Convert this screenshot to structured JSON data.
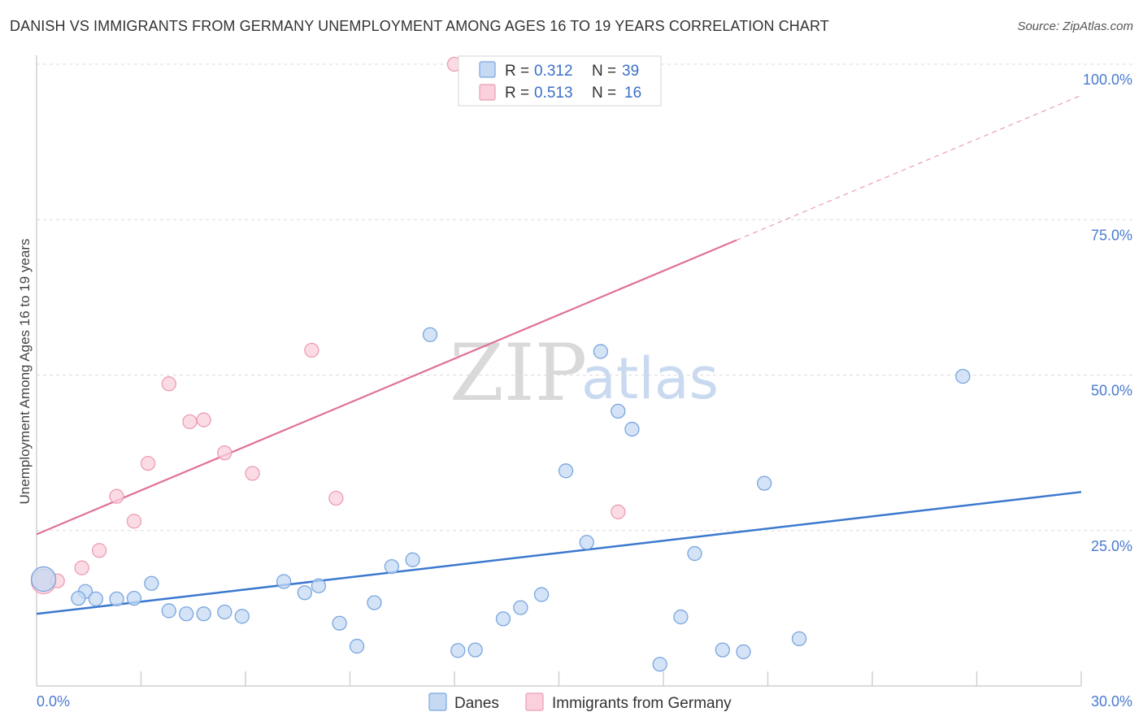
{
  "title": "DANISH VS IMMIGRANTS FROM GERMANY UNEMPLOYMENT AMONG AGES 16 TO 19 YEARS CORRELATION CHART",
  "source": "Source: ZipAtlas.com",
  "watermark": {
    "zip": "ZIP",
    "atlas": "atlas"
  },
  "legend": {
    "r_label": "R =",
    "n_label": "N =",
    "rows": [
      {
        "r": "0.312",
        "n": "39"
      },
      {
        "r": "0.513",
        "n": "16"
      }
    ]
  },
  "bottom_legend": [
    "Danes",
    "Immigrants from Germany"
  ],
  "colors": {
    "danes_fill": "#c5d9f3",
    "danes_stroke": "#7aa6e0",
    "danes_line": "#3b78cf",
    "germany_fill": "#f9d0dc",
    "germany_stroke": "#eb9db3",
    "germany_line": "#e0729a",
    "tick_label": "#4a7bd0"
  },
  "chart_data": {
    "type": "scatter",
    "title": "DANISH VS IMMIGRANTS FROM GERMANY UNEMPLOYMENT AMONG AGES 16 TO 19 YEARS CORRELATION CHART",
    "xlabel": "",
    "ylabel": "Unemployment Among Ages 16 to 19 years",
    "xlim": [
      0,
      30
    ],
    "ylim": [
      0,
      100
    ],
    "x_tick_labels": [
      "0.0%",
      "30.0%"
    ],
    "y_ticks": [
      25,
      50,
      75,
      100
    ],
    "y_tick_labels": [
      "25.0%",
      "50.0%",
      "75.0%",
      "100.0%"
    ],
    "grid": true,
    "legend_position": "top-center",
    "series": [
      {
        "name": "Danes",
        "r": 0.312,
        "n": 39,
        "points": [
          [
            0.2,
            17.2
          ],
          [
            1.4,
            15.2
          ],
          [
            1.2,
            14.1
          ],
          [
            1.7,
            14.0
          ],
          [
            2.3,
            14.0
          ],
          [
            2.8,
            14.1
          ],
          [
            3.3,
            16.5
          ],
          [
            3.8,
            12.1
          ],
          [
            4.3,
            11.6
          ],
          [
            4.8,
            11.6
          ],
          [
            5.4,
            11.9
          ],
          [
            5.9,
            11.2
          ],
          [
            7.1,
            16.8
          ],
          [
            7.7,
            15.0
          ],
          [
            8.1,
            16.1
          ],
          [
            8.7,
            10.1
          ],
          [
            9.2,
            6.4
          ],
          [
            9.7,
            13.4
          ],
          [
            10.2,
            19.2
          ],
          [
            10.8,
            20.3
          ],
          [
            11.3,
            56.5
          ],
          [
            12.1,
            5.7
          ],
          [
            12.6,
            5.8
          ],
          [
            13.4,
            10.8
          ],
          [
            13.9,
            12.6
          ],
          [
            14.5,
            14.7
          ],
          [
            15.2,
            34.6
          ],
          [
            15.8,
            23.1
          ],
          [
            16.2,
            53.8
          ],
          [
            16.7,
            44.2
          ],
          [
            17.1,
            41.3
          ],
          [
            17.9,
            3.5
          ],
          [
            18.5,
            11.1
          ],
          [
            18.9,
            21.3
          ],
          [
            19.7,
            5.8
          ],
          [
            20.3,
            5.5
          ],
          [
            20.9,
            32.6
          ],
          [
            21.9,
            7.6
          ],
          [
            26.6,
            49.8
          ]
        ],
        "trend": {
          "x0": 0,
          "y0": 11.6,
          "x1": 30,
          "y1": 31.2
        }
      },
      {
        "name": "Immigrants from Germany",
        "r": 0.513,
        "n": 16,
        "points": [
          [
            0.2,
            16.8
          ],
          [
            0.6,
            16.9
          ],
          [
            1.3,
            19.0
          ],
          [
            1.8,
            21.8
          ],
          [
            2.3,
            30.5
          ],
          [
            2.8,
            26.5
          ],
          [
            3.2,
            35.8
          ],
          [
            3.8,
            48.6
          ],
          [
            4.4,
            42.5
          ],
          [
            4.8,
            42.8
          ],
          [
            5.4,
            37.5
          ],
          [
            6.2,
            34.2
          ],
          [
            7.9,
            54.0
          ],
          [
            8.6,
            30.2
          ],
          [
            12.0,
            100.0
          ],
          [
            16.7,
            28.0
          ]
        ],
        "trend": {
          "x0": 0,
          "y0": 24.4,
          "x1": 20.1,
          "y1": 71.7
        },
        "trend_dashed": {
          "x0": 20.1,
          "y0": 71.7,
          "x1": 30,
          "y1": 95.0
        }
      }
    ]
  }
}
